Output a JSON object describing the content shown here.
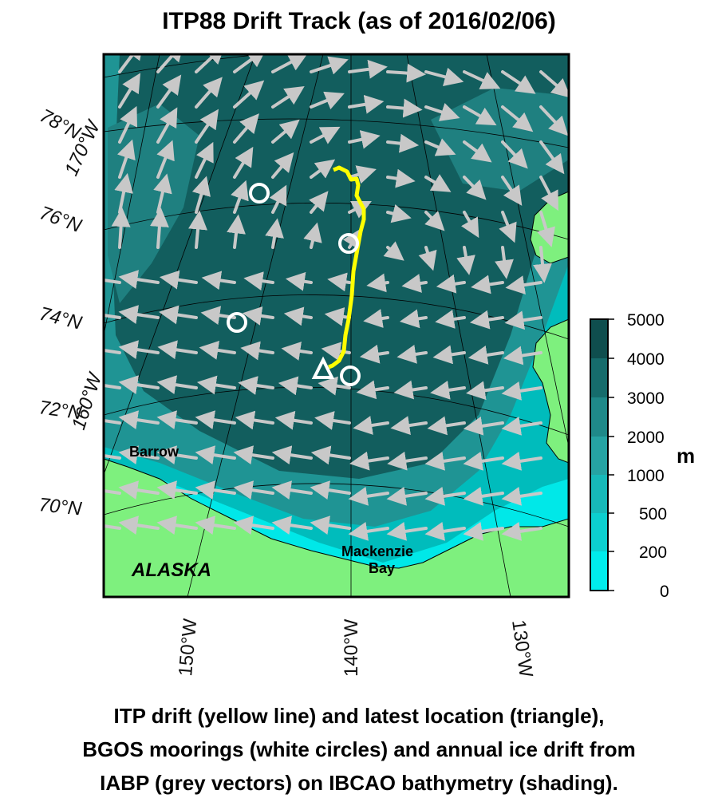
{
  "title": "ITP88 Drift Track (as of 2016/02/06)",
  "caption": [
    "ITP drift (yellow line) and latest location (triangle),",
    "BGOS moorings (white circles) and annual ice drift from",
    "IABP (grey vectors) on IBCAO bathymetry (shading)."
  ],
  "map": {
    "lat_labels": [
      "78°N",
      "76°N",
      "74°N",
      "72°N",
      "70°N"
    ],
    "lon_labels_bottom": [
      "150°W",
      "140°W",
      "130°W"
    ],
    "lon_labels_left": [
      "170°W",
      "160°W"
    ],
    "places": [
      "Barrow",
      "ALASKA",
      "Mackenzie",
      "Bay"
    ],
    "colors": {
      "land": "#7ef07e",
      "shallow": "#00e8e8",
      "mid": "#00bcbc",
      "deep": "#1f9494",
      "basin": "#125e5e",
      "track": "#ffff00",
      "vector": "#c8c8c8",
      "mooring": "#ffffff"
    }
  },
  "colorbar": {
    "unit": "m",
    "ticks": [
      "5000",
      "4000",
      "3000",
      "2000",
      "1000",
      "500",
      "200",
      "0"
    ],
    "colors": [
      "#0f4e4e",
      "#166c6c",
      "#1f8989",
      "#26a3a3",
      "#17b9b9",
      "#0ccfcf",
      "#00ecec"
    ]
  },
  "legend_items": [
    "ITP drift",
    "latest location",
    "BGOS moorings",
    "ice drift vectors"
  ]
}
